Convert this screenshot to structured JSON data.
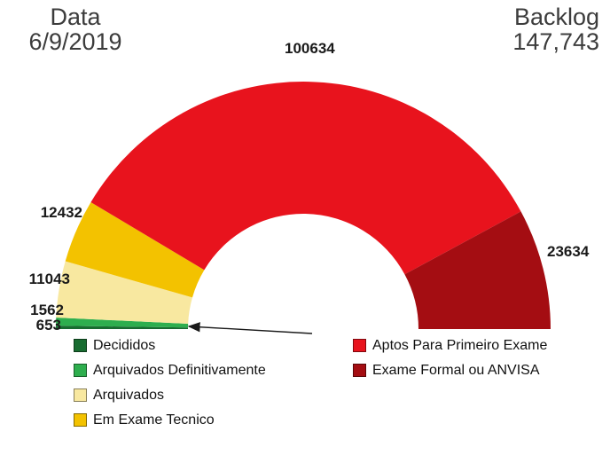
{
  "header": {
    "date_label": "Data",
    "date_value": "6/9/2019",
    "backlog_label": "Backlog",
    "backlog_value": "147,743"
  },
  "chart_data": {
    "type": "pie",
    "subtype": "half-donut",
    "start_angle_deg": 180,
    "end_angle_deg": 0,
    "direction": "clockwise",
    "backlog_total": "147,743",
    "segments": [
      {
        "label": "Decididos",
        "value": 653,
        "color": "#186C30"
      },
      {
        "label": "Arquivados Definitivamente",
        "value": 1562,
        "color": "#2EAE4E"
      },
      {
        "label": "Arquivados",
        "value": 11043,
        "color": "#F8E8A0"
      },
      {
        "label": "Em Exame Tecnico",
        "value": 12432,
        "color": "#F3C200"
      },
      {
        "label": "Aptos Para Primeiro Exame",
        "value": 100634,
        "color": "#E8131D"
      },
      {
        "label": "Exame Formal ou ANVISA",
        "value": 23634,
        "color": "#A40D12"
      }
    ]
  }
}
